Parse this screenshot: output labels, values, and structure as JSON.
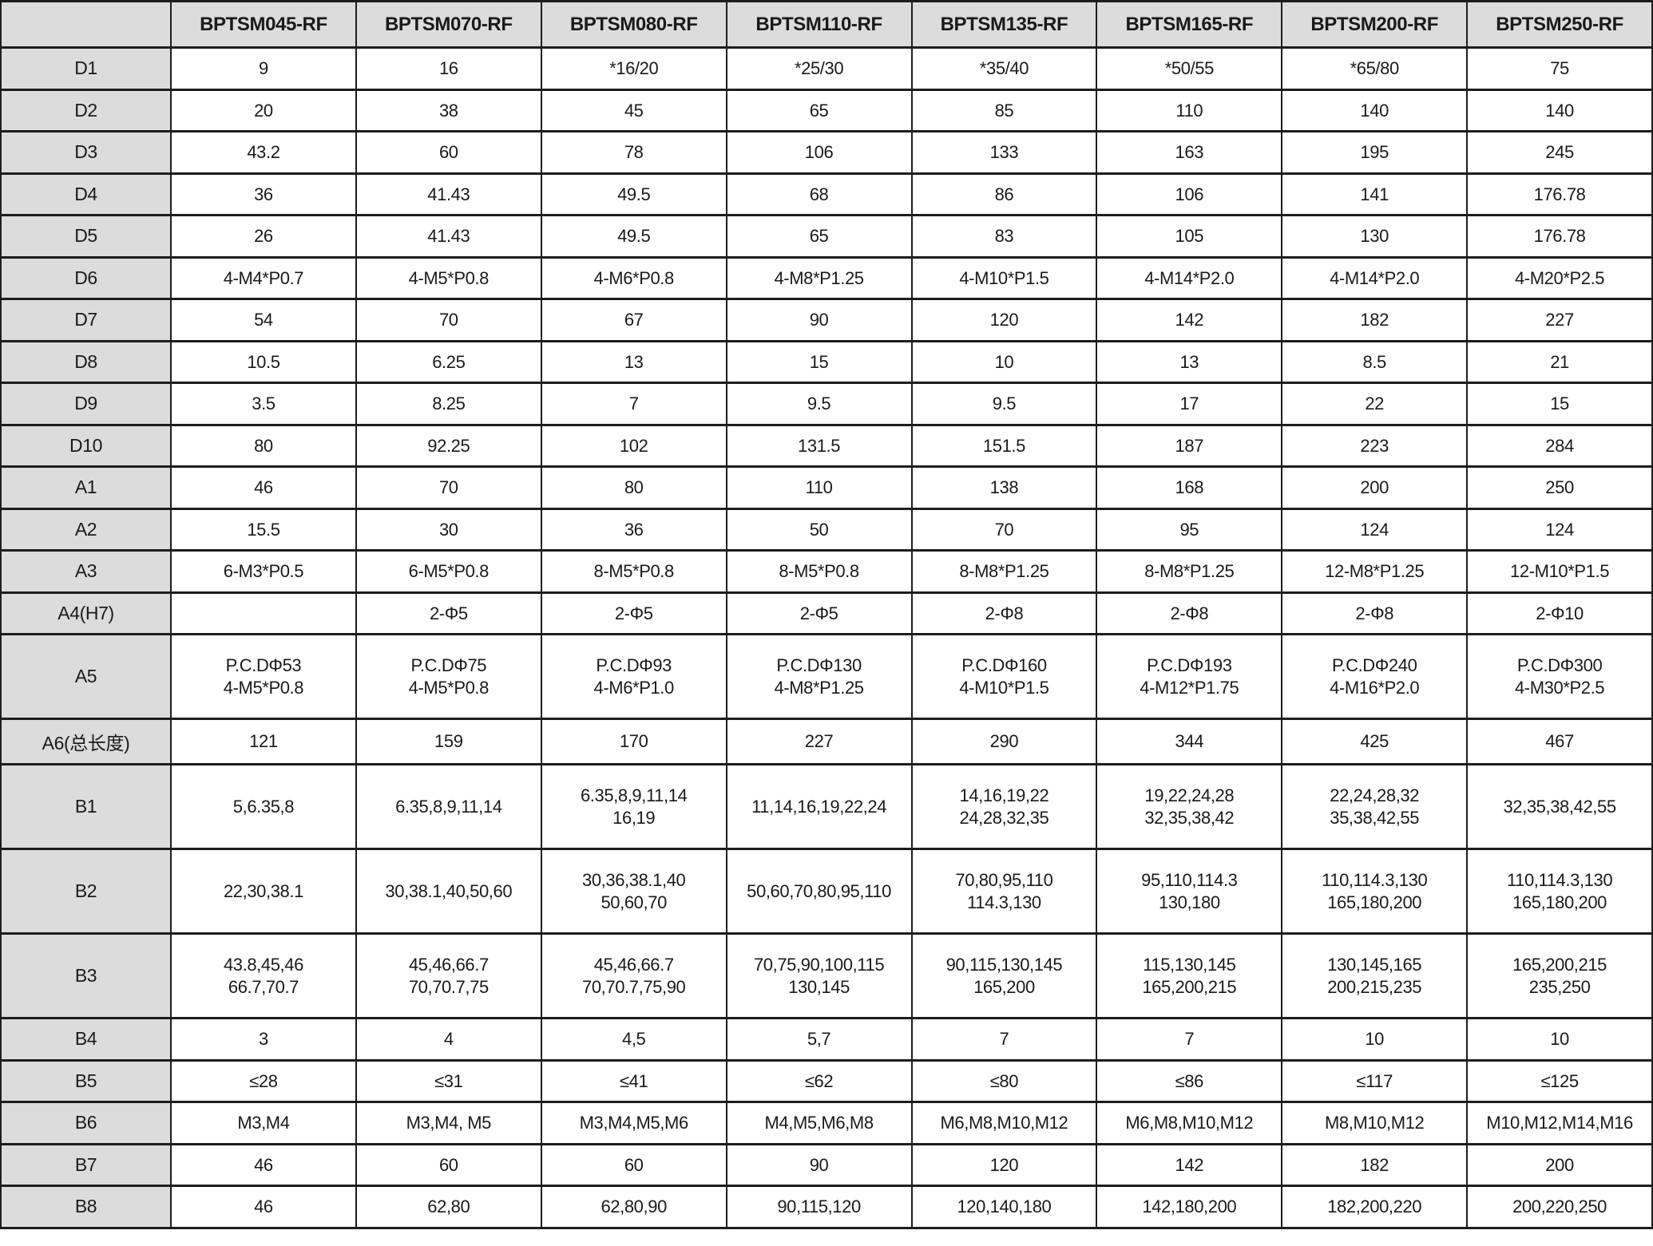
{
  "table": {
    "corner_label": "",
    "columns": [
      "BPTSM045-RF",
      "BPTSM070-RF",
      "BPTSM080-RF",
      "BPTSM110-RF",
      "BPTSM135-RF",
      "BPTSM165-RF",
      "BPTSM200-RF",
      "BPTSM250-RF"
    ],
    "rows": [
      {
        "label": "D1",
        "values": [
          "9",
          "16",
          "*16/20",
          "*25/30",
          "*35/40",
          "*50/55",
          "*65/80",
          "75"
        ]
      },
      {
        "label": "D2",
        "values": [
          "20",
          "38",
          "45",
          "65",
          "85",
          "110",
          "140",
          "140"
        ]
      },
      {
        "label": "D3",
        "values": [
          "43.2",
          "60",
          "78",
          "106",
          "133",
          "163",
          "195",
          "245"
        ]
      },
      {
        "label": "D4",
        "values": [
          "36",
          "41.43",
          "49.5",
          "68",
          "86",
          "106",
          "141",
          "176.78"
        ]
      },
      {
        "label": "D5",
        "values": [
          "26",
          "41.43",
          "49.5",
          "65",
          "83",
          "105",
          "130",
          "176.78"
        ]
      },
      {
        "label": "D6",
        "values": [
          "4-M4*P0.7",
          "4-M5*P0.8",
          "4-M6*P0.8",
          "4-M8*P1.25",
          "4-M10*P1.5",
          "4-M14*P2.0",
          "4-M14*P2.0",
          "4-M20*P2.5"
        ]
      },
      {
        "label": "D7",
        "values": [
          "54",
          "70",
          "67",
          "90",
          "120",
          "142",
          "182",
          "227"
        ]
      },
      {
        "label": "D8",
        "values": [
          "10.5",
          "6.25",
          "13",
          "15",
          "10",
          "13",
          "8.5",
          "21"
        ]
      },
      {
        "label": "D9",
        "values": [
          "3.5",
          "8.25",
          "7",
          "9.5",
          "9.5",
          "17",
          "22",
          "15"
        ]
      },
      {
        "label": "D10",
        "values": [
          "80",
          "92.25",
          "102",
          "131.5",
          "151.5",
          "187",
          "223",
          "284"
        ]
      },
      {
        "label": "A1",
        "values": [
          "46",
          "70",
          "80",
          "110",
          "138",
          "168",
          "200",
          "250"
        ]
      },
      {
        "label": "A2",
        "values": [
          "15.5",
          "30",
          "36",
          "50",
          "70",
          "95",
          "124",
          "124"
        ]
      },
      {
        "label": "A3",
        "values": [
          "6-M3*P0.5",
          "6-M5*P0.8",
          "8-M5*P0.8",
          "8-M5*P0.8",
          "8-M8*P1.25",
          "8-M8*P1.25",
          "12-M8*P1.25",
          "12-M10*P1.5"
        ]
      },
      {
        "label": "A4(H7)",
        "values": [
          "",
          "2-Φ5",
          "2-Φ5",
          "2-Φ5",
          "2-Φ8",
          "2-Φ8",
          "2-Φ8",
          "2-Φ10"
        ]
      },
      {
        "label": "A5",
        "values": [
          "P.C.DΦ53\n4-M5*P0.8",
          "P.C.DΦ75\n4-M5*P0.8",
          "P.C.DΦ93\n4-M6*P1.0",
          "P.C.DΦ130\n4-M8*P1.25",
          "P.C.DΦ160\n4-M10*P1.5",
          "P.C.DΦ193\n4-M12*P1.75",
          "P.C.DΦ240\n4-M16*P2.0",
          "P.C.DΦ300\n4-M30*P2.5"
        ]
      },
      {
        "label": "A6(总长度)",
        "values": [
          "121",
          "159",
          "170",
          "227",
          "290",
          "344",
          "425",
          "467"
        ]
      },
      {
        "label": "B1",
        "values": [
          "5,6.35,8",
          "6.35,8,9,11,14",
          "6.35,8,9,11,14\n16,19",
          "11,14,16,19,22,24",
          "14,16,19,22\n24,28,32,35",
          "19,22,24,28\n32,35,38,42",
          "22,24,28,32\n35,38,42,55",
          "32,35,38,42,55"
        ]
      },
      {
        "label": "B2",
        "values": [
          "22,30,38.1",
          "30,38.1,40,50,60",
          "30,36,38.1,40\n50,60,70",
          "50,60,70,80,95,110",
          "70,80,95,110\n114.3,130",
          "95,110,114.3\n130,180",
          "110,114.3,130\n165,180,200",
          "110,114.3,130\n165,180,200"
        ]
      },
      {
        "label": "B3",
        "values": [
          "43.8,45,46\n66.7,70.7",
          "45,46,66.7\n70,70.7,75",
          "45,46,66.7\n70,70.7,75,90",
          "70,75,90,100,115\n130,145",
          "90,115,130,145\n165,200",
          "115,130,145\n165,200,215",
          "130,145,165\n200,215,235",
          "165,200,215\n235,250"
        ]
      },
      {
        "label": "B4",
        "values": [
          "3",
          "4",
          "4,5",
          "5,7",
          "7",
          "7",
          "10",
          "10"
        ]
      },
      {
        "label": "B5",
        "values": [
          "≤28",
          "≤31",
          "≤41",
          "≤62",
          "≤80",
          "≤86",
          "≤117",
          "≤125"
        ]
      },
      {
        "label": "B6",
        "values": [
          "M3,M4",
          "M3,M4, M5",
          "M3,M4,M5,M6",
          "M4,M5,M6,M8",
          "M6,M8,M10,M12",
          "M6,M8,M10,M12",
          "M8,M10,M12",
          "M10,M12,M14,M16"
        ]
      },
      {
        "label": "B7",
        "values": [
          "46",
          "60",
          "60",
          "90",
          "120",
          "142",
          "182",
          "200"
        ]
      },
      {
        "label": "B8",
        "values": [
          "46",
          "62,80",
          "62,80,90",
          "90,115,120",
          "120,140,180",
          "142,180,200",
          "182,200,220",
          "200,220,250"
        ]
      }
    ]
  },
  "colors": {
    "header_bg": "#dcdcdc",
    "cell_bg": "#ffffff",
    "border": "#1d1d1d",
    "text": "#1a1a1a"
  }
}
